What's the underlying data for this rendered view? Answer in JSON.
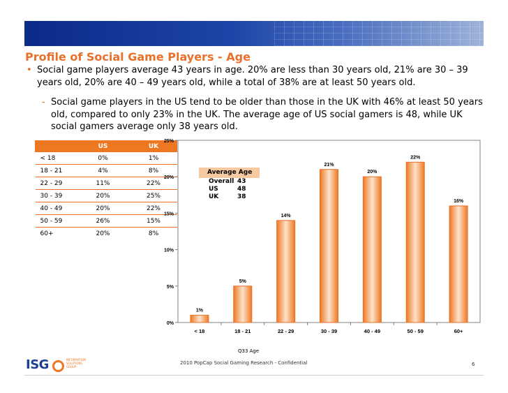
{
  "slide": {
    "title": "Profile of Social Game Players - Age",
    "bullets": [
      "Social game players average 43 years in age. 20% are less than 30 years old, 21% are 30 – 39 years old, 20% are 40 – 49 years old, while a total of 38% are at least 50 years old.",
      "Social game players in the US tend to be older than those in the UK with 46% at least 50 years old, compared to only 23% in the UK.  The average age of US social gamers is 48, while UK social gamers average only 38 years old."
    ],
    "footer": "2010 PopCap Social Gaming Research -  Confidential",
    "page_number": "6",
    "logo": {
      "text": "ISG",
      "tagline": [
        "INFORMATION",
        "SOLUTIONS",
        "GROUP"
      ]
    }
  },
  "table": {
    "headers": [
      "",
      "US",
      "UK"
    ],
    "rows": [
      [
        "< 18",
        "0%",
        "1%"
      ],
      [
        "18 - 21",
        "4%",
        "8%"
      ],
      [
        "22 - 29",
        "11%",
        "22%"
      ],
      [
        "30 - 39",
        "20%",
        "25%"
      ],
      [
        "40 - 49",
        "20%",
        "22%"
      ],
      [
        "50 - 59",
        "26%",
        "15%"
      ],
      [
        "60+",
        "20%",
        "8%"
      ]
    ]
  },
  "average_age": {
    "title": "Average Age",
    "rows": [
      {
        "label": "Overall",
        "value": "43"
      },
      {
        "label": "US",
        "value": "48"
      },
      {
        "label": "UK",
        "value": "38"
      }
    ]
  },
  "chart_data": {
    "type": "bar",
    "categories": [
      "< 18",
      "18 - 21",
      "22 - 29",
      "30 - 39",
      "40 - 49",
      "50 - 59",
      "60+"
    ],
    "values": [
      1,
      5,
      14,
      21,
      20,
      22,
      16
    ],
    "value_labels": [
      "1%",
      "5%",
      "14%",
      "21%",
      "20%",
      "22%",
      "16%"
    ],
    "ylim": [
      0,
      25
    ],
    "yticks": [
      "0%",
      "5%",
      "10%",
      "15%",
      "20%",
      "25%"
    ],
    "xlabel": "Q33  Age",
    "grid": false,
    "bar_color": "#ee7822"
  }
}
